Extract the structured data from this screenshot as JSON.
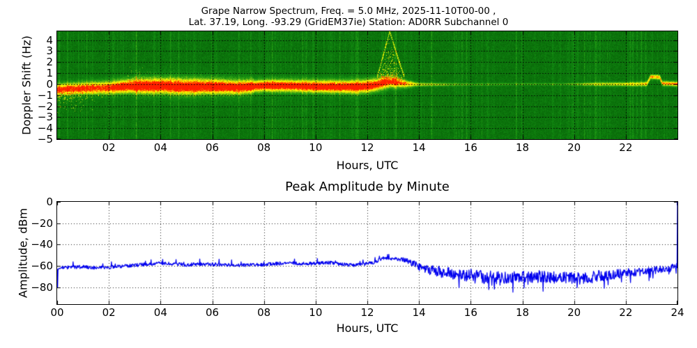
{
  "accent_colors": {
    "trace_line": "#0000ee",
    "spectrogram_bg_green": "#0f850f",
    "spectrogram_hot": "#ff1e00",
    "grid": "#000000"
  },
  "spectrogram": {
    "title_line1": "Grape Narrow Spectrum, Freq. = 5.0 MHz, 2025-11-10T00-00 ,",
    "title_line2": "Lat.  37.19, Long. -93.29 (GridEM37ie) Station: AD0RR Subchannel 0",
    "ylabel": "Doppler Shift (Hz)",
    "xlabel": "Hours, UTC"
  },
  "amplitude": {
    "title": "Peak Amplitude by Minute",
    "ylabel": "Amplitude, dBm",
    "xlabel": "Hours, UTC"
  },
  "chart_data": [
    {
      "type": "heatmap",
      "title": "Grape Narrow Spectrum, Freq. = 5.0 MHz, 2025-11-10T00-00 , Lat. 37.19, Long. -93.29 (GridEM37ie) Station: AD0RR Subchannel 0",
      "xlabel": "Hours, UTC",
      "ylabel": "Doppler Shift (Hz)",
      "x_range": [
        0,
        24
      ],
      "y_range": [
        -5,
        4.8
      ],
      "xtick_hours": [
        2,
        4,
        6,
        8,
        10,
        12,
        14,
        16,
        18,
        20,
        22
      ],
      "xtick_labels": [
        "02",
        "04",
        "06",
        "08",
        "10",
        "12",
        "14",
        "16",
        "18",
        "20",
        "22"
      ],
      "ytick_values": [
        4,
        3,
        2,
        1,
        0,
        -1,
        -2,
        -3,
        -4,
        -5
      ],
      "ytick_labels": [
        "4",
        "3",
        "2",
        "1",
        "0",
        "−1",
        "−2",
        "−3",
        "−4",
        "−5"
      ],
      "grid": "dotted black, on",
      "legend": "none",
      "description": "Green noise background with a narrow yellow/red Doppler trace near 0 Hz; strong 00-13.5 UTC, faint thin line 13.5-20.5, brighter again 20.5-24; plume event rising to ~+4.5 Hz near 12.8 UTC; step of ~+0.7 Hz near 23 UTC",
      "trace_center_hz": [
        [
          0,
          -0.45
        ],
        [
          0.5,
          -0.4
        ],
        [
          1,
          -0.35
        ],
        [
          2,
          -0.3
        ],
        [
          2.5,
          -0.2
        ],
        [
          3,
          -0.15
        ],
        [
          4,
          -0.12
        ],
        [
          5,
          -0.2
        ],
        [
          6,
          -0.18
        ],
        [
          7,
          -0.25
        ],
        [
          7.8,
          -0.15
        ],
        [
          8,
          -0.1
        ],
        [
          9,
          -0.12
        ],
        [
          10,
          -0.18
        ],
        [
          10.8,
          -0.2
        ],
        [
          11.5,
          -0.22
        ],
        [
          12,
          -0.15
        ],
        [
          12.4,
          0.0
        ],
        [
          12.6,
          0.15
        ],
        [
          12.9,
          0.25
        ],
        [
          13.2,
          0.15
        ],
        [
          13.5,
          0.05
        ],
        [
          14,
          0.0
        ],
        [
          16,
          0.0
        ],
        [
          18,
          0.02
        ],
        [
          20,
          0.02
        ],
        [
          22,
          0.03
        ],
        [
          22.8,
          0.05
        ],
        [
          22.95,
          0.7
        ],
        [
          23.3,
          0.65
        ],
        [
          23.4,
          0.1
        ],
        [
          24,
          0.05
        ]
      ],
      "trace_intensity": [
        [
          0,
          1.05
        ],
        [
          2,
          1.05
        ],
        [
          2.5,
          1.2
        ],
        [
          7,
          1.15
        ],
        [
          8,
          1.2
        ],
        [
          12,
          1.2
        ],
        [
          13,
          1.05
        ],
        [
          13.6,
          0.8
        ],
        [
          14,
          0.55
        ],
        [
          15,
          0.45
        ],
        [
          15.5,
          0.35
        ],
        [
          17,
          0.32
        ],
        [
          19,
          0.3
        ],
        [
          20,
          0.35
        ],
        [
          20.5,
          0.55
        ],
        [
          21.5,
          0.6
        ],
        [
          22.5,
          0.68
        ],
        [
          23,
          0.85
        ],
        [
          24,
          0.9
        ]
      ],
      "trace_sigma_hz": [
        [
          0,
          0.35
        ],
        [
          3,
          0.42
        ],
        [
          5,
          0.45
        ],
        [
          8,
          0.35
        ],
        [
          12,
          0.4
        ],
        [
          13,
          0.35
        ],
        [
          13.6,
          0.2
        ],
        [
          14,
          0.12
        ],
        [
          16,
          0.08
        ],
        [
          20,
          0.08
        ],
        [
          21,
          0.12
        ],
        [
          24,
          0.15
        ]
      ],
      "event_plume": {
        "start_hour": 12.25,
        "peak_hour": 12.85,
        "end_hour": 13.55,
        "max_hz": 4.6
      },
      "fuzz_below_start_hours": [
        0,
        1.8
      ],
      "fuzz_below_depth_hz": 2.2,
      "fuzz_above_hours": [
        2.7,
        3.6
      ],
      "fuzz_above_height_hz": 1.8,
      "broad_band_hours": [
        3.0,
        7.6
      ]
    },
    {
      "type": "line",
      "title": "Peak Amplitude by Minute",
      "xlabel": "Hours, UTC",
      "ylabel": "Amplitude, dBm",
      "x_range": [
        0,
        24
      ],
      "y_range": [
        -96,
        0
      ],
      "xtick_hours": [
        0,
        2,
        4,
        6,
        8,
        10,
        12,
        14,
        16,
        18,
        20,
        22,
        24
      ],
      "xtick_labels": [
        "00",
        "02",
        "04",
        "06",
        "08",
        "10",
        "12",
        "14",
        "16",
        "18",
        "20",
        "22",
        "24"
      ],
      "ytick_values": [
        0,
        -20,
        -40,
        -60,
        -80
      ],
      "ytick_labels": [
        "0",
        "−20",
        "−40",
        "−60",
        "−80"
      ],
      "grid": "dotted black, on",
      "legend": "none",
      "line_color": "#0000ee",
      "samples_per_hour": 60,
      "baseline_dbm": [
        [
          0,
          -62
        ],
        [
          0.5,
          -61.5
        ],
        [
          1,
          -61
        ],
        [
          1.5,
          -62
        ],
        [
          2,
          -61.5
        ],
        [
          2.5,
          -60.5
        ],
        [
          3,
          -59.5
        ],
        [
          3.5,
          -58.5
        ],
        [
          4,
          -57.5
        ],
        [
          4.5,
          -58
        ],
        [
          5,
          -59
        ],
        [
          5.5,
          -58.5
        ],
        [
          6,
          -58.5
        ],
        [
          6.5,
          -59
        ],
        [
          7,
          -59.5
        ],
        [
          7.5,
          -59
        ],
        [
          8,
          -59
        ],
        [
          8.5,
          -58
        ],
        [
          9,
          -57.5
        ],
        [
          9.5,
          -58
        ],
        [
          10,
          -58
        ],
        [
          10.5,
          -57
        ],
        [
          11,
          -58.5
        ],
        [
          11.5,
          -59.5
        ],
        [
          12,
          -58
        ],
        [
          12.3,
          -56.5
        ],
        [
          12.6,
          -52.5
        ],
        [
          12.9,
          -54
        ],
        [
          13.2,
          -53.5
        ],
        [
          13.5,
          -55
        ],
        [
          13.8,
          -58
        ],
        [
          14,
          -61
        ],
        [
          14.5,
          -64.5
        ],
        [
          15,
          -66.5
        ],
        [
          15.5,
          -67.5
        ],
        [
          16,
          -69
        ],
        [
          16.5,
          -70
        ],
        [
          17,
          -71
        ],
        [
          17.5,
          -71.5
        ],
        [
          18,
          -70
        ],
        [
          18.5,
          -70
        ],
        [
          19,
          -70.5
        ],
        [
          19.5,
          -71
        ],
        [
          20,
          -72
        ],
        [
          20.5,
          -71.5
        ],
        [
          21,
          -69.5
        ],
        [
          21.5,
          -68
        ],
        [
          22,
          -66.5
        ],
        [
          22.5,
          -66
        ],
        [
          23,
          -64.5
        ],
        [
          23.5,
          -63
        ],
        [
          24,
          -60.5
        ]
      ],
      "noise_sd_dbm": [
        [
          0,
          1.6
        ],
        [
          13,
          1.6
        ],
        [
          13.5,
          2.2
        ],
        [
          14,
          3.5
        ],
        [
          14.5,
          5
        ],
        [
          15,
          5.5
        ],
        [
          16,
          6
        ],
        [
          21,
          5.5
        ],
        [
          21.5,
          4.5
        ],
        [
          22,
          4
        ],
        [
          23,
          3.5
        ],
        [
          24,
          3
        ]
      ],
      "start_dip_dbm": -80,
      "end_spike_dbm": 0
    }
  ]
}
